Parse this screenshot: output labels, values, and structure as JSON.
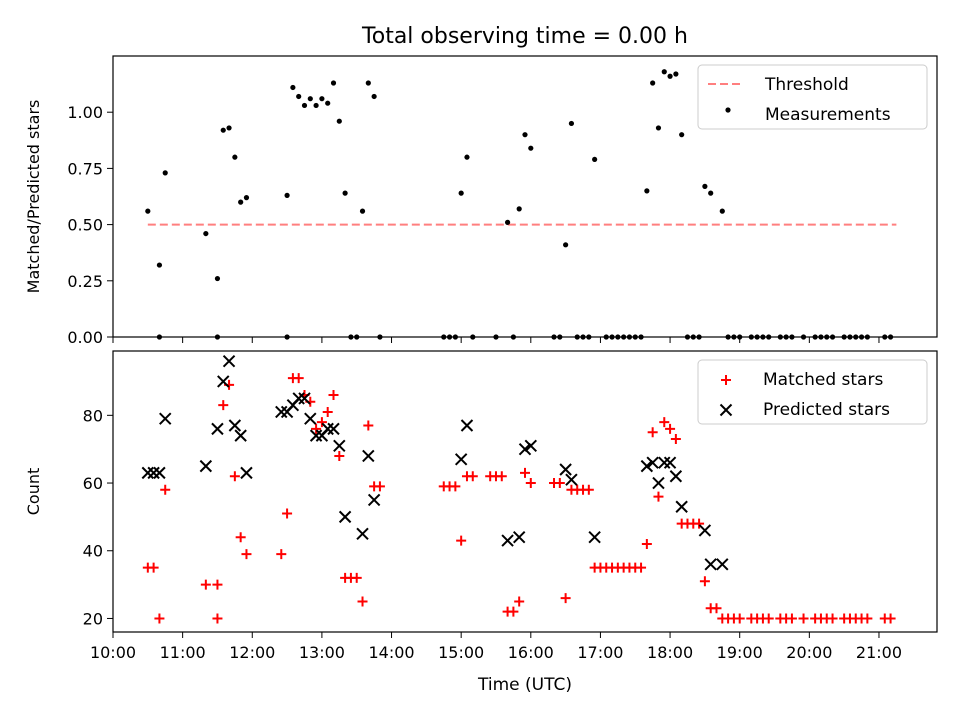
{
  "title": "Total observing time = 0.00 h",
  "xlabel": "Time (UTC)",
  "colors": {
    "matched": "#ff0000",
    "predicted": "#000000",
    "threshold": "#ff7f7f",
    "measurement": "#000000"
  },
  "chart_data": [
    {
      "type": "scatter",
      "ylabel": "Matched/Predicted stars",
      "xlim": [
        "10:00",
        "21:50"
      ],
      "ylim": [
        0,
        1.25
      ],
      "yticks": [
        "0.00",
        "0.25",
        "0.50",
        "0.75",
        "1.00"
      ],
      "grid": false,
      "legend_position": "top-right",
      "threshold": {
        "name": "Threshold",
        "value": 0.5,
        "x": [
          "10:30",
          "21:15"
        ]
      },
      "series": [
        {
          "name": "Measurements",
          "points": [
            [
              "10:30",
              0.56
            ],
            [
              "10:40",
              0.32
            ],
            [
              "10:45",
              0.73
            ],
            [
              "11:20",
              0.46
            ],
            [
              "11:30",
              0.26
            ],
            [
              "11:35",
              0.92
            ],
            [
              "11:40",
              0.93
            ],
            [
              "11:45",
              0.8
            ],
            [
              "11:50",
              0.6
            ],
            [
              "11:55",
              0.62
            ],
            [
              "12:30",
              0.63
            ],
            [
              "12:35",
              1.11
            ],
            [
              "12:40",
              1.07
            ],
            [
              "12:45",
              1.03
            ],
            [
              "12:50",
              1.06
            ],
            [
              "12:55",
              1.03
            ],
            [
              "13:00",
              1.06
            ],
            [
              "13:05",
              1.04
            ],
            [
              "13:10",
              1.13
            ],
            [
              "13:15",
              0.96
            ],
            [
              "13:20",
              0.64
            ],
            [
              "13:35",
              0.56
            ],
            [
              "13:40",
              1.13
            ],
            [
              "13:45",
              1.07
            ],
            [
              "15:00",
              0.64
            ],
            [
              "15:05",
              0.8
            ],
            [
              "15:40",
              0.51
            ],
            [
              "15:50",
              0.57
            ],
            [
              "15:55",
              0.9
            ],
            [
              "16:00",
              0.84
            ],
            [
              "16:30",
              0.41
            ],
            [
              "16:35",
              0.95
            ],
            [
              "16:55",
              0.79
            ],
            [
              "17:40",
              0.65
            ],
            [
              "17:45",
              1.13
            ],
            [
              "17:50",
              0.93
            ],
            [
              "17:55",
              1.18
            ],
            [
              "18:00",
              1.16
            ],
            [
              "18:05",
              1.17
            ],
            [
              "18:10",
              0.9
            ],
            [
              "18:30",
              0.67
            ],
            [
              "18:35",
              0.64
            ],
            [
              "18:45",
              0.56
            ],
            [
              "10:40",
              0
            ],
            [
              "11:30",
              0
            ],
            [
              "12:30",
              0
            ],
            [
              "13:25",
              0
            ],
            [
              "13:30",
              0
            ],
            [
              "13:50",
              0
            ],
            [
              "14:45",
              0
            ],
            [
              "14:50",
              0
            ],
            [
              "14:55",
              0
            ],
            [
              "15:10",
              0
            ],
            [
              "15:30",
              0
            ],
            [
              "15:45",
              0
            ],
            [
              "16:20",
              0
            ],
            [
              "16:25",
              0
            ],
            [
              "16:40",
              0
            ],
            [
              "16:45",
              0
            ],
            [
              "16:50",
              0
            ],
            [
              "17:05",
              0
            ],
            [
              "17:10",
              0
            ],
            [
              "17:15",
              0
            ],
            [
              "17:20",
              0
            ],
            [
              "17:25",
              0
            ],
            [
              "17:30",
              0
            ],
            [
              "17:35",
              0
            ],
            [
              "18:15",
              0
            ],
            [
              "18:20",
              0
            ],
            [
              "18:25",
              0
            ],
            [
              "18:50",
              0
            ],
            [
              "18:55",
              0
            ],
            [
              "19:00",
              0
            ],
            [
              "19:10",
              0
            ],
            [
              "19:15",
              0
            ],
            [
              "19:20",
              0
            ],
            [
              "19:25",
              0
            ],
            [
              "19:35",
              0
            ],
            [
              "19:40",
              0
            ],
            [
              "19:45",
              0
            ],
            [
              "19:55",
              0
            ],
            [
              "20:05",
              0
            ],
            [
              "20:10",
              0
            ],
            [
              "20:15",
              0
            ],
            [
              "20:20",
              0
            ],
            [
              "20:30",
              0
            ],
            [
              "20:35",
              0
            ],
            [
              "20:40",
              0
            ],
            [
              "20:45",
              0
            ],
            [
              "20:50",
              0
            ],
            [
              "21:05",
              0
            ],
            [
              "21:10",
              0
            ]
          ]
        }
      ]
    },
    {
      "type": "scatter",
      "ylabel": "Count",
      "xlim": [
        "10:00",
        "21:50"
      ],
      "ylim": [
        16,
        99
      ],
      "yticks": [
        "20",
        "40",
        "60",
        "80"
      ],
      "xticks": [
        "10:00",
        "11:00",
        "12:00",
        "13:00",
        "14:00",
        "15:00",
        "16:00",
        "17:00",
        "18:00",
        "19:00",
        "20:00",
        "21:00"
      ],
      "grid": false,
      "legend_position": "top-right",
      "series": [
        {
          "name": "Matched stars",
          "marker": "plus",
          "points": [
            [
              "10:30",
              35
            ],
            [
              "10:35",
              35
            ],
            [
              "10:40",
              20
            ],
            [
              "10:45",
              58
            ],
            [
              "11:20",
              30
            ],
            [
              "11:30",
              30
            ],
            [
              "11:30",
              20
            ],
            [
              "11:35",
              83
            ],
            [
              "11:40",
              89
            ],
            [
              "11:45",
              62
            ],
            [
              "11:50",
              44
            ],
            [
              "11:55",
              39
            ],
            [
              "12:25",
              39
            ],
            [
              "12:30",
              51
            ],
            [
              "12:35",
              91
            ],
            [
              "12:40",
              91
            ],
            [
              "12:45",
              86
            ],
            [
              "12:50",
              84
            ],
            [
              "12:55",
              76
            ],
            [
              "13:00",
              78
            ],
            [
              "13:05",
              81
            ],
            [
              "13:10",
              86
            ],
            [
              "13:15",
              68
            ],
            [
              "13:20",
              32
            ],
            [
              "13:25",
              32
            ],
            [
              "13:30",
              32
            ],
            [
              "13:35",
              25
            ],
            [
              "13:40",
              77
            ],
            [
              "13:45",
              59
            ],
            [
              "13:50",
              59
            ],
            [
              "14:45",
              59
            ],
            [
              "14:50",
              59
            ],
            [
              "14:55",
              59
            ],
            [
              "15:00",
              43
            ],
            [
              "15:05",
              62
            ],
            [
              "15:10",
              62
            ],
            [
              "15:25",
              62
            ],
            [
              "15:30",
              62
            ],
            [
              "15:35",
              62
            ],
            [
              "15:40",
              22
            ],
            [
              "15:45",
              22
            ],
            [
              "15:50",
              25
            ],
            [
              "15:55",
              63
            ],
            [
              "16:00",
              60
            ],
            [
              "16:20",
              60
            ],
            [
              "16:25",
              60
            ],
            [
              "16:30",
              26
            ],
            [
              "16:35",
              58
            ],
            [
              "16:40",
              58
            ],
            [
              "16:45",
              58
            ],
            [
              "16:50",
              58
            ],
            [
              "16:55",
              35
            ],
            [
              "17:00",
              35
            ],
            [
              "17:05",
              35
            ],
            [
              "17:10",
              35
            ],
            [
              "17:15",
              35
            ],
            [
              "17:20",
              35
            ],
            [
              "17:25",
              35
            ],
            [
              "17:30",
              35
            ],
            [
              "17:35",
              35
            ],
            [
              "17:40",
              42
            ],
            [
              "17:45",
              75
            ],
            [
              "17:50",
              56
            ],
            [
              "17:55",
              78
            ],
            [
              "18:00",
              76
            ],
            [
              "18:05",
              73
            ],
            [
              "18:10",
              48
            ],
            [
              "18:15",
              48
            ],
            [
              "18:20",
              48
            ],
            [
              "18:25",
              48
            ],
            [
              "18:30",
              31
            ],
            [
              "18:35",
              23
            ],
            [
              "18:40",
              23
            ],
            [
              "18:45",
              20
            ],
            [
              "18:50",
              20
            ],
            [
              "18:55",
              20
            ],
            [
              "19:00",
              20
            ],
            [
              "19:10",
              20
            ],
            [
              "19:15",
              20
            ],
            [
              "19:20",
              20
            ],
            [
              "19:25",
              20
            ],
            [
              "19:35",
              20
            ],
            [
              "19:40",
              20
            ],
            [
              "19:45",
              20
            ],
            [
              "19:55",
              20
            ],
            [
              "20:05",
              20
            ],
            [
              "20:10",
              20
            ],
            [
              "20:15",
              20
            ],
            [
              "20:20",
              20
            ],
            [
              "20:30",
              20
            ],
            [
              "20:35",
              20
            ],
            [
              "20:40",
              20
            ],
            [
              "20:45",
              20
            ],
            [
              "20:50",
              20
            ],
            [
              "21:05",
              20
            ],
            [
              "21:10",
              20
            ]
          ]
        },
        {
          "name": "Predicted stars",
          "marker": "x",
          "points": [
            [
              "10:30",
              63
            ],
            [
              "10:35",
              63
            ],
            [
              "10:40",
              63
            ],
            [
              "10:45",
              79
            ],
            [
              "11:20",
              65
            ],
            [
              "11:30",
              76
            ],
            [
              "11:35",
              90
            ],
            [
              "11:40",
              96
            ],
            [
              "11:45",
              77
            ],
            [
              "11:50",
              74
            ],
            [
              "11:55",
              63
            ],
            [
              "12:25",
              81
            ],
            [
              "12:30",
              81
            ],
            [
              "12:35",
              83
            ],
            [
              "12:40",
              85
            ],
            [
              "12:45",
              85
            ],
            [
              "12:50",
              79
            ],
            [
              "12:55",
              74
            ],
            [
              "13:00",
              74
            ],
            [
              "13:05",
              76
            ],
            [
              "13:10",
              76
            ],
            [
              "13:15",
              71
            ],
            [
              "13:20",
              50
            ],
            [
              "13:35",
              45
            ],
            [
              "13:40",
              68
            ],
            [
              "13:45",
              55
            ],
            [
              "15:00",
              67
            ],
            [
              "15:05",
              77
            ],
            [
              "15:40",
              43
            ],
            [
              "15:50",
              44
            ],
            [
              "15:55",
              70
            ],
            [
              "16:00",
              71
            ],
            [
              "16:30",
              64
            ],
            [
              "16:35",
              61
            ],
            [
              "16:55",
              44
            ],
            [
              "17:40",
              65
            ],
            [
              "17:45",
              66
            ],
            [
              "17:50",
              60
            ],
            [
              "17:55",
              66
            ],
            [
              "18:00",
              66
            ],
            [
              "18:05",
              62
            ],
            [
              "18:10",
              53
            ],
            [
              "18:30",
              46
            ],
            [
              "18:35",
              36
            ],
            [
              "18:45",
              36
            ]
          ]
        }
      ]
    }
  ]
}
